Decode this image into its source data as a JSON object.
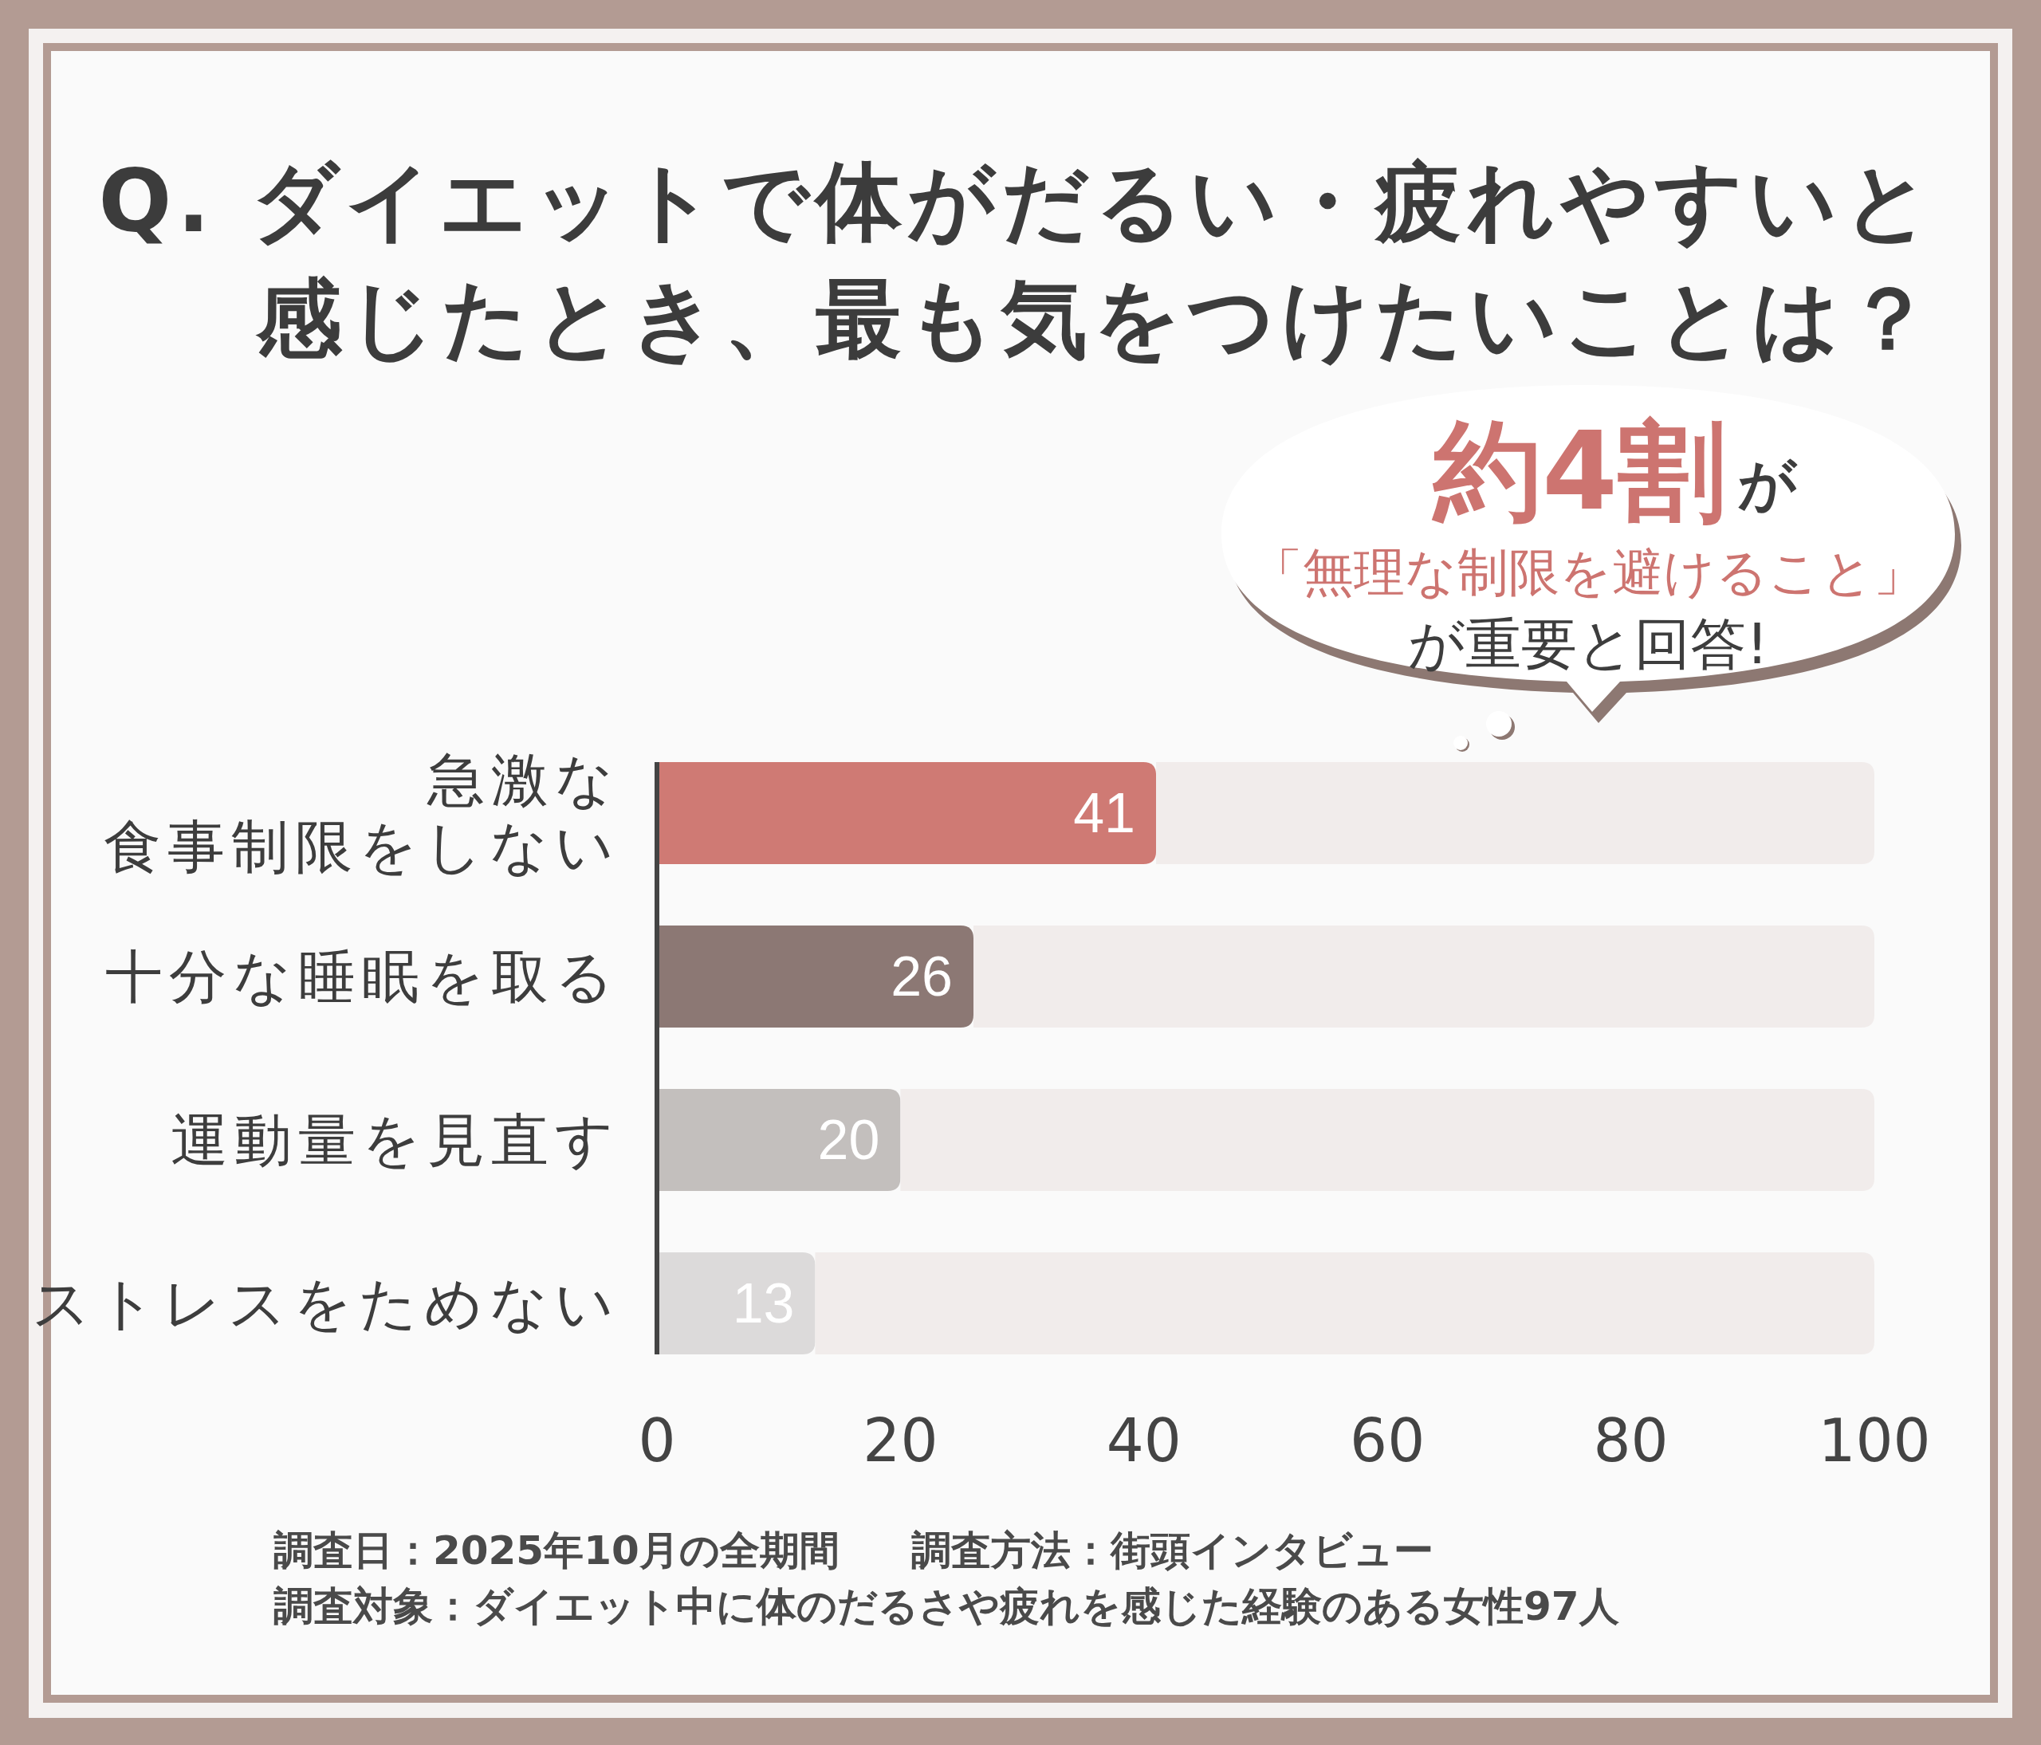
{
  "chart_data": {
    "type": "bar",
    "orientation": "horizontal",
    "stacked": true,
    "title": "Q. ダイエットで体がだるい・疲れやすいと感じたとき、最も気をつけたいことは？",
    "categories": [
      "急激な食事制限をしない",
      "十分な睡眠を取る",
      "運動量を見直す",
      "ストレスをためない"
    ],
    "series": [
      {
        "values": [
          41,
          26,
          20,
          13
        ],
        "colors": [
          "#cf7a74",
          "#8c7874",
          "#c3bfbd",
          "#dcdada"
        ],
        "value_labels": [
          "41",
          "26",
          "20",
          "13"
        ]
      },
      {
        "values": [
          59,
          74,
          80,
          87
        ],
        "color": "#f1eceb"
      }
    ],
    "xlim": [
      0,
      100
    ],
    "xticks": [
      0,
      20,
      40,
      60,
      80,
      100
    ],
    "annotations": [
      "約4割",
      "が",
      "「無理な制限を避けること」",
      "が重要と回答!",
      "調査日：2025年10月の全期間",
      "調査方法：街頭インタビュー",
      "調査対象：ダイエット中に体のだるさや疲れを感じた経験のある女性97人"
    ]
  }
}
